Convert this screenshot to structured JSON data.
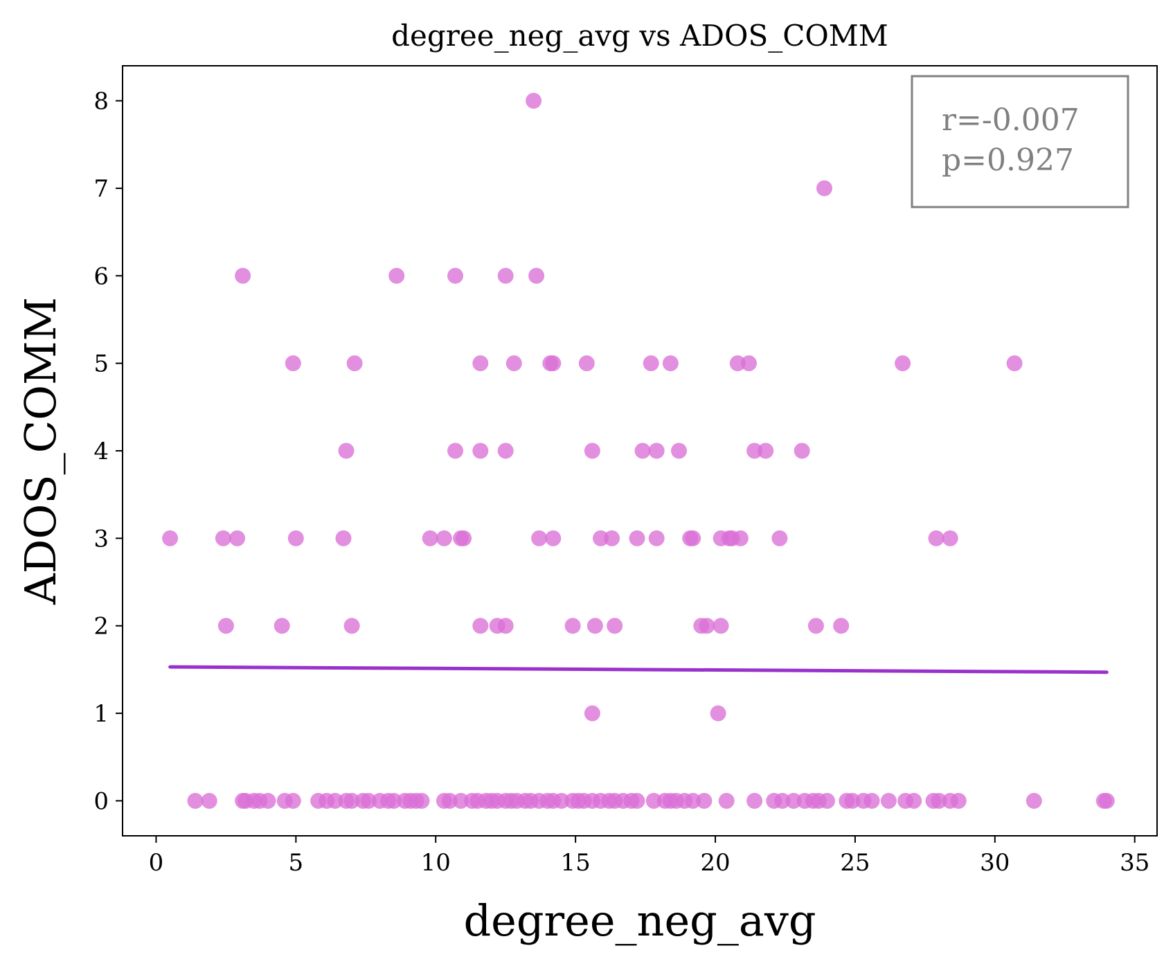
{
  "chart_data": {
    "type": "scatter",
    "title": "degree_neg_avg vs ADOS_COMM",
    "xlabel": "degree_neg_avg",
    "ylabel": "ADOS_COMM",
    "xlim": [
      -1.2,
      35.8
    ],
    "ylim": [
      -0.4,
      8.4
    ],
    "xticks": [
      0,
      5,
      10,
      15,
      20,
      25,
      30,
      35
    ],
    "yticks": [
      0,
      1,
      2,
      3,
      4,
      5,
      6,
      7,
      8
    ],
    "grid": false,
    "point_color": "#DA70D6",
    "line_color": "#9932CC",
    "stats": {
      "r": "r=-0.007",
      "p": "p=0.927",
      "color": "#808080"
    },
    "trend": {
      "x": [
        0.5,
        34.0
      ],
      "y": [
        1.53,
        1.47
      ]
    },
    "points": [
      [
        13.5,
        8
      ],
      [
        23.9,
        7
      ],
      [
        3.1,
        6
      ],
      [
        8.6,
        6
      ],
      [
        10.7,
        6
      ],
      [
        12.5,
        6
      ],
      [
        13.6,
        6
      ],
      [
        4.9,
        5
      ],
      [
        7.1,
        5
      ],
      [
        11.6,
        5
      ],
      [
        12.8,
        5
      ],
      [
        14.1,
        5
      ],
      [
        14.2,
        5
      ],
      [
        15.4,
        5
      ],
      [
        17.7,
        5
      ],
      [
        18.4,
        5
      ],
      [
        20.8,
        5
      ],
      [
        21.2,
        5
      ],
      [
        26.7,
        5
      ],
      [
        30.7,
        5
      ],
      [
        6.8,
        4
      ],
      [
        10.7,
        4
      ],
      [
        11.6,
        4
      ],
      [
        12.5,
        4
      ],
      [
        15.6,
        4
      ],
      [
        17.4,
        4
      ],
      [
        17.9,
        4
      ],
      [
        18.7,
        4
      ],
      [
        21.4,
        4
      ],
      [
        21.8,
        4
      ],
      [
        23.1,
        4
      ],
      [
        0.5,
        3
      ],
      [
        2.4,
        3
      ],
      [
        2.9,
        3
      ],
      [
        5.0,
        3
      ],
      [
        6.7,
        3
      ],
      [
        9.8,
        3
      ],
      [
        10.3,
        3
      ],
      [
        10.9,
        3
      ],
      [
        11.0,
        3
      ],
      [
        13.7,
        3
      ],
      [
        14.2,
        3
      ],
      [
        15.9,
        3
      ],
      [
        16.3,
        3
      ],
      [
        17.2,
        3
      ],
      [
        17.9,
        3
      ],
      [
        19.1,
        3
      ],
      [
        19.2,
        3
      ],
      [
        20.2,
        3
      ],
      [
        20.5,
        3
      ],
      [
        20.6,
        3
      ],
      [
        20.9,
        3
      ],
      [
        22.3,
        3
      ],
      [
        27.9,
        3
      ],
      [
        28.4,
        3
      ],
      [
        2.5,
        2
      ],
      [
        4.5,
        2
      ],
      [
        7.0,
        2
      ],
      [
        11.6,
        2
      ],
      [
        12.2,
        2
      ],
      [
        12.5,
        2
      ],
      [
        14.9,
        2
      ],
      [
        15.7,
        2
      ],
      [
        16.4,
        2
      ],
      [
        19.5,
        2
      ],
      [
        19.7,
        2
      ],
      [
        20.2,
        2
      ],
      [
        23.6,
        2
      ],
      [
        24.5,
        2
      ],
      [
        15.6,
        1
      ],
      [
        20.1,
        1
      ],
      [
        1.4,
        0
      ],
      [
        1.9,
        0
      ],
      [
        3.1,
        0
      ],
      [
        3.2,
        0
      ],
      [
        3.5,
        0
      ],
      [
        3.7,
        0
      ],
      [
        4.0,
        0
      ],
      [
        4.6,
        0
      ],
      [
        4.9,
        0
      ],
      [
        5.8,
        0
      ],
      [
        6.1,
        0
      ],
      [
        6.4,
        0
      ],
      [
        6.8,
        0
      ],
      [
        7.0,
        0
      ],
      [
        7.4,
        0
      ],
      [
        7.6,
        0
      ],
      [
        8.0,
        0
      ],
      [
        8.3,
        0
      ],
      [
        8.5,
        0
      ],
      [
        8.9,
        0
      ],
      [
        9.1,
        0
      ],
      [
        9.3,
        0
      ],
      [
        9.5,
        0
      ],
      [
        10.3,
        0
      ],
      [
        10.5,
        0
      ],
      [
        10.9,
        0
      ],
      [
        11.3,
        0
      ],
      [
        11.5,
        0
      ],
      [
        11.8,
        0
      ],
      [
        12.0,
        0
      ],
      [
        12.2,
        0
      ],
      [
        12.5,
        0
      ],
      [
        12.7,
        0
      ],
      [
        12.9,
        0
      ],
      [
        13.2,
        0
      ],
      [
        13.4,
        0
      ],
      [
        13.7,
        0
      ],
      [
        14.0,
        0
      ],
      [
        14.2,
        0
      ],
      [
        14.5,
        0
      ],
      [
        14.9,
        0
      ],
      [
        15.1,
        0
      ],
      [
        15.3,
        0
      ],
      [
        15.6,
        0
      ],
      [
        15.9,
        0
      ],
      [
        16.2,
        0
      ],
      [
        16.4,
        0
      ],
      [
        16.7,
        0
      ],
      [
        17.0,
        0
      ],
      [
        17.2,
        0
      ],
      [
        17.8,
        0
      ],
      [
        18.2,
        0
      ],
      [
        18.4,
        0
      ],
      [
        18.6,
        0
      ],
      [
        18.9,
        0
      ],
      [
        19.2,
        0
      ],
      [
        19.6,
        0
      ],
      [
        20.4,
        0
      ],
      [
        21.4,
        0
      ],
      [
        22.1,
        0
      ],
      [
        22.4,
        0
      ],
      [
        22.8,
        0
      ],
      [
        23.2,
        0
      ],
      [
        23.5,
        0
      ],
      [
        23.7,
        0
      ],
      [
        24.0,
        0
      ],
      [
        24.7,
        0
      ],
      [
        24.9,
        0
      ],
      [
        25.3,
        0
      ],
      [
        25.6,
        0
      ],
      [
        26.2,
        0
      ],
      [
        26.8,
        0
      ],
      [
        27.1,
        0
      ],
      [
        27.8,
        0
      ],
      [
        28.0,
        0
      ],
      [
        28.4,
        0
      ],
      [
        28.7,
        0
      ],
      [
        31.4,
        0
      ],
      [
        33.9,
        0
      ],
      [
        34.0,
        0
      ]
    ]
  }
}
